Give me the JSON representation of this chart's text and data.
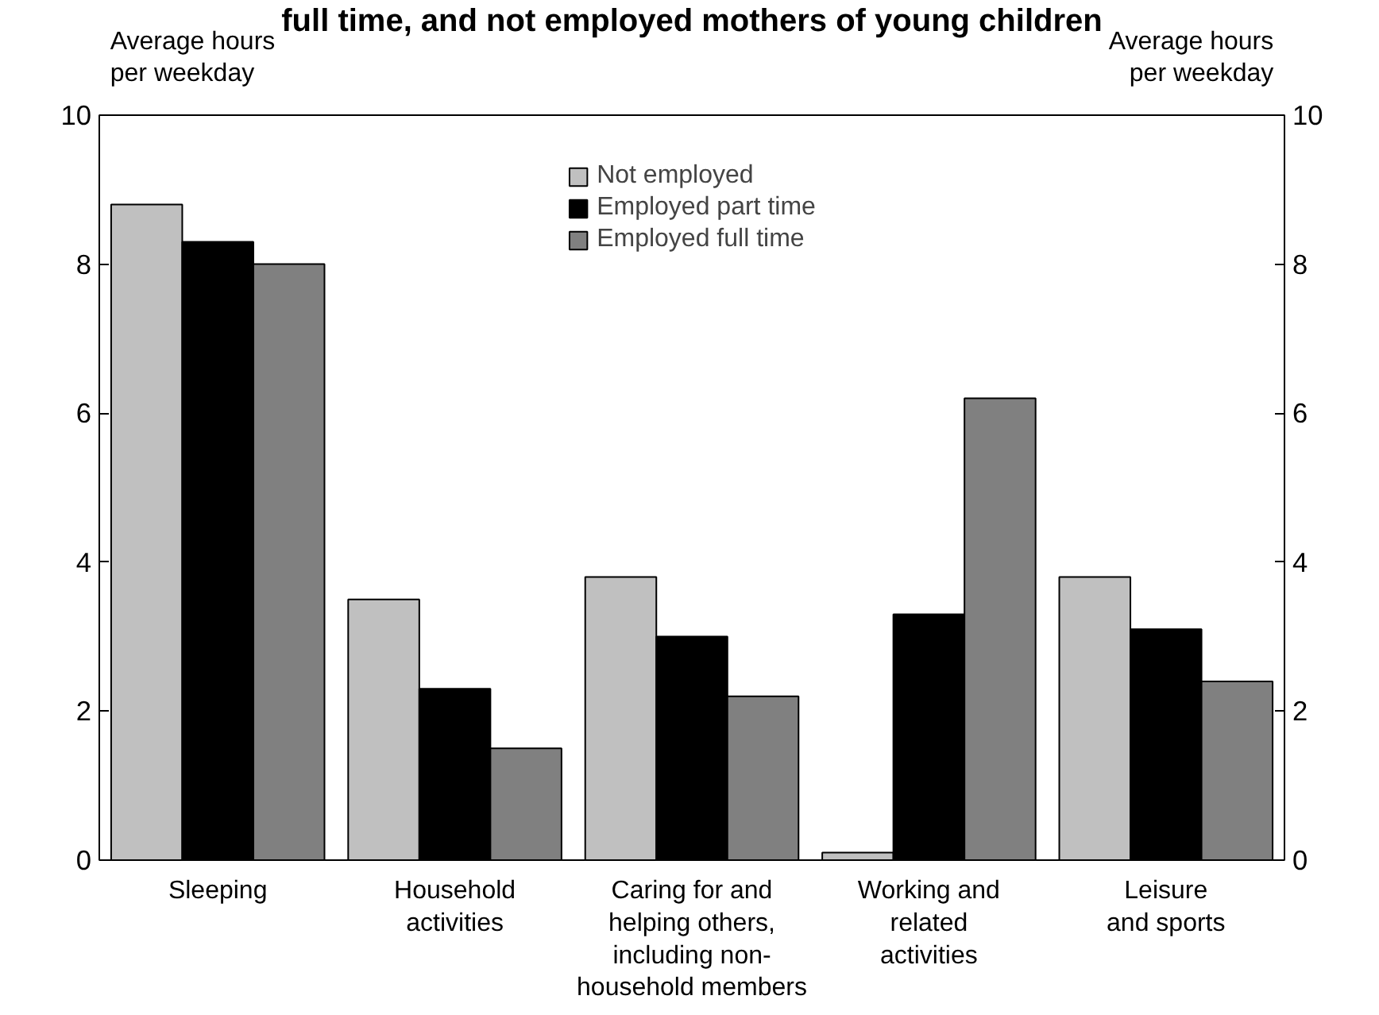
{
  "chart_data": {
    "type": "bar",
    "title": "full time, and not employed mothers of young children",
    "ylabel": "Average hours\nper weekday",
    "y2label": "Average hours\nper weekday",
    "categories": [
      "Sleeping",
      "Household\nactivities",
      "Caring for and\nhelping others,\nincluding non-\nhousehold members",
      "Working and\nrelated\nactivities",
      "Leisure\nand sports"
    ],
    "series": [
      {
        "name": "Not employed",
        "color": "#c0c0c0",
        "values": [
          8.8,
          3.5,
          3.8,
          0.1,
          3.8
        ]
      },
      {
        "name": "Employed part time",
        "color": "#000000",
        "values": [
          8.3,
          2.3,
          3.0,
          3.3,
          3.1
        ]
      },
      {
        "name": "Employed full time",
        "color": "#808080",
        "values": [
          8.0,
          1.5,
          2.2,
          6.2,
          2.4
        ]
      }
    ],
    "ylim": [
      0,
      10
    ],
    "yticks": [
      0,
      2,
      4,
      6,
      8,
      10
    ],
    "y2lim": [
      0,
      10
    ],
    "y2ticks": [
      0,
      2,
      4,
      6,
      8,
      10
    ],
    "grid": false,
    "legend": "top"
  }
}
